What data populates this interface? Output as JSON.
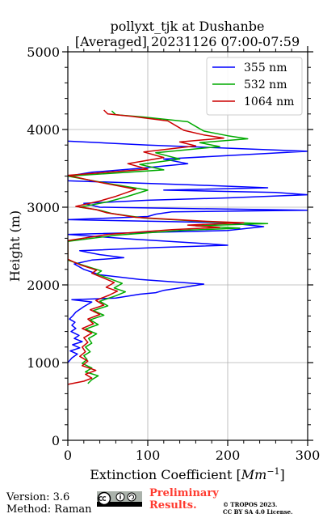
{
  "chart_data": {
    "type": "line",
    "title_line1": "pollyxt_tjk at Dushanbe",
    "title_line2": "[Averaged] 20231126 07:00-07:59",
    "xlabel_text": "Extinction Coefficient [",
    "xlabel_unit": "Mm",
    "xlabel_exp": "−1",
    "xlabel_close": "]",
    "ylabel": "Height (m)",
    "xlim": [
      0,
      300
    ],
    "ylim": [
      0,
      5000
    ],
    "xticks": [
      0,
      100,
      200,
      300
    ],
    "yticks": [
      0,
      1000,
      2000,
      3000,
      4000,
      5000
    ],
    "grid": true,
    "legend_position": "top-right",
    "series": [
      {
        "name": "355 nm",
        "color": "#0000ff",
        "points": [
          [
            0,
            1000
          ],
          [
            5,
            1060
          ],
          [
            12,
            1110
          ],
          [
            3,
            1150
          ],
          [
            15,
            1190
          ],
          [
            6,
            1230
          ],
          [
            18,
            1270
          ],
          [
            8,
            1310
          ],
          [
            14,
            1350
          ],
          [
            4,
            1400
          ],
          [
            10,
            1440
          ],
          [
            5,
            1480
          ],
          [
            9,
            1520
          ],
          [
            2,
            1560
          ],
          [
            6,
            1600
          ],
          [
            10,
            1650
          ],
          [
            20,
            1720
          ],
          [
            30,
            1780
          ],
          [
            5,
            1810
          ],
          [
            60,
            1830
          ],
          [
            90,
            1880
          ],
          [
            110,
            1900
          ],
          [
            120,
            1930
          ],
          [
            140,
            1960
          ],
          [
            170,
            2010
          ],
          [
            90,
            2070
          ],
          [
            40,
            2130
          ],
          [
            20,
            2200
          ],
          [
            8,
            2270
          ],
          [
            30,
            2320
          ],
          [
            70,
            2350
          ],
          [
            40,
            2390
          ],
          [
            15,
            2440
          ],
          [
            110,
            2480
          ],
          [
            200,
            2510
          ],
          [
            160,
            2540
          ],
          [
            80,
            2590
          ],
          [
            0,
            2650
          ],
          [
            200,
            2700
          ],
          [
            245,
            2750
          ],
          [
            200,
            2800
          ],
          [
            0,
            2840
          ],
          [
            100,
            2880
          ],
          [
            110,
            2910
          ],
          [
            130,
            2940
          ],
          [
            300,
            2960
          ],
          [
            40,
            3000
          ],
          [
            20,
            3050
          ],
          [
            100,
            3090
          ],
          [
            200,
            3120
          ],
          [
            300,
            3160
          ],
          [
            260,
            3190
          ],
          [
            120,
            3220
          ],
          [
            250,
            3250
          ],
          [
            150,
            3290
          ],
          [
            0,
            3340
          ],
          [
            0,
            3400
          ],
          [
            30,
            3450
          ],
          [
            90,
            3500
          ],
          [
            150,
            3560
          ],
          [
            120,
            3620
          ],
          [
            300,
            3720
          ],
          [
            100,
            3800
          ],
          [
            0,
            3850
          ]
        ]
      },
      {
        "name": "532 nm",
        "color": "#00aa00",
        "points": [
          [
            25,
            730
          ],
          [
            30,
            780
          ],
          [
            38,
            830
          ],
          [
            22,
            880
          ],
          [
            30,
            930
          ],
          [
            18,
            990
          ],
          [
            24,
            1040
          ],
          [
            20,
            1090
          ],
          [
            28,
            1140
          ],
          [
            22,
            1200
          ],
          [
            30,
            1250
          ],
          [
            26,
            1310
          ],
          [
            36,
            1370
          ],
          [
            22,
            1430
          ],
          [
            38,
            1490
          ],
          [
            28,
            1550
          ],
          [
            45,
            1610
          ],
          [
            32,
            1670
          ],
          [
            50,
            1730
          ],
          [
            40,
            1790
          ],
          [
            60,
            1860
          ],
          [
            72,
            1910
          ],
          [
            58,
            1960
          ],
          [
            68,
            2020
          ],
          [
            50,
            2090
          ],
          [
            36,
            2140
          ],
          [
            42,
            2180
          ],
          [
            20,
            2250
          ],
          [
            0,
            2320
          ],
          [
            0,
            2400
          ],
          [
            0,
            2480
          ],
          [
            0,
            2560
          ],
          [
            60,
            2640
          ],
          [
            140,
            2700
          ],
          [
            215,
            2730
          ],
          [
            160,
            2760
          ],
          [
            250,
            2790
          ],
          [
            180,
            2810
          ],
          [
            95,
            2860
          ],
          [
            55,
            2920
          ],
          [
            40,
            2960
          ],
          [
            15,
            3000
          ],
          [
            50,
            3070
          ],
          [
            72,
            3130
          ],
          [
            100,
            3220
          ],
          [
            60,
            3290
          ],
          [
            42,
            3320
          ],
          [
            0,
            3400
          ],
          [
            120,
            3480
          ],
          [
            90,
            3550
          ],
          [
            140,
            3620
          ],
          [
            110,
            3700
          ],
          [
            190,
            3780
          ],
          [
            165,
            3830
          ],
          [
            225,
            3880
          ],
          [
            200,
            3920
          ],
          [
            170,
            3980
          ],
          [
            160,
            4040
          ],
          [
            150,
            4100
          ],
          [
            95,
            4160
          ],
          [
            60,
            4190
          ],
          [
            55,
            4240
          ]
        ]
      },
      {
        "name": "1064 nm",
        "color": "#cc0000",
        "points": [
          [
            0,
            720
          ],
          [
            20,
            760
          ],
          [
            30,
            800
          ],
          [
            22,
            850
          ],
          [
            35,
            900
          ],
          [
            18,
            960
          ],
          [
            25,
            1020
          ],
          [
            15,
            1080
          ],
          [
            22,
            1140
          ],
          [
            18,
            1200
          ],
          [
            25,
            1260
          ],
          [
            20,
            1320
          ],
          [
            30,
            1380
          ],
          [
            18,
            1440
          ],
          [
            32,
            1500
          ],
          [
            25,
            1560
          ],
          [
            40,
            1620
          ],
          [
            28,
            1680
          ],
          [
            45,
            1740
          ],
          [
            35,
            1800
          ],
          [
            52,
            1870
          ],
          [
            62,
            1920
          ],
          [
            48,
            1970
          ],
          [
            58,
            2030
          ],
          [
            42,
            2100
          ],
          [
            30,
            2150
          ],
          [
            36,
            2190
          ],
          [
            15,
            2260
          ],
          [
            0,
            2330
          ],
          [
            0,
            2410
          ],
          [
            0,
            2490
          ],
          [
            0,
            2570
          ],
          [
            50,
            2650
          ],
          [
            130,
            2710
          ],
          [
            190,
            2740
          ],
          [
            150,
            2770
          ],
          [
            220,
            2800
          ],
          [
            170,
            2820
          ],
          [
            85,
            2870
          ],
          [
            48,
            2930
          ],
          [
            35,
            2970
          ],
          [
            10,
            3010
          ],
          [
            40,
            3080
          ],
          [
            60,
            3140
          ],
          [
            85,
            3230
          ],
          [
            50,
            3300
          ],
          [
            35,
            3330
          ],
          [
            0,
            3410
          ],
          [
            100,
            3490
          ],
          [
            75,
            3560
          ],
          [
            120,
            3640
          ],
          [
            95,
            3710
          ],
          [
            160,
            3790
          ],
          [
            140,
            3840
          ],
          [
            195,
            3890
          ],
          [
            170,
            3930
          ],
          [
            145,
            3990
          ],
          [
            135,
            4050
          ],
          [
            125,
            4110
          ],
          [
            80,
            4170
          ],
          [
            50,
            4200
          ],
          [
            45,
            4250
          ]
        ]
      }
    ]
  },
  "footer": {
    "version": "Version: 3.6",
    "method": "Method: Raman",
    "preliminary_line1": "Preliminary",
    "preliminary_line2": "Results.",
    "copyright_line1": "© TROPOS 2023.",
    "copyright_line2": "CC BY SA 4.0 License.",
    "license_badge": "cc-by-sa-badge"
  }
}
